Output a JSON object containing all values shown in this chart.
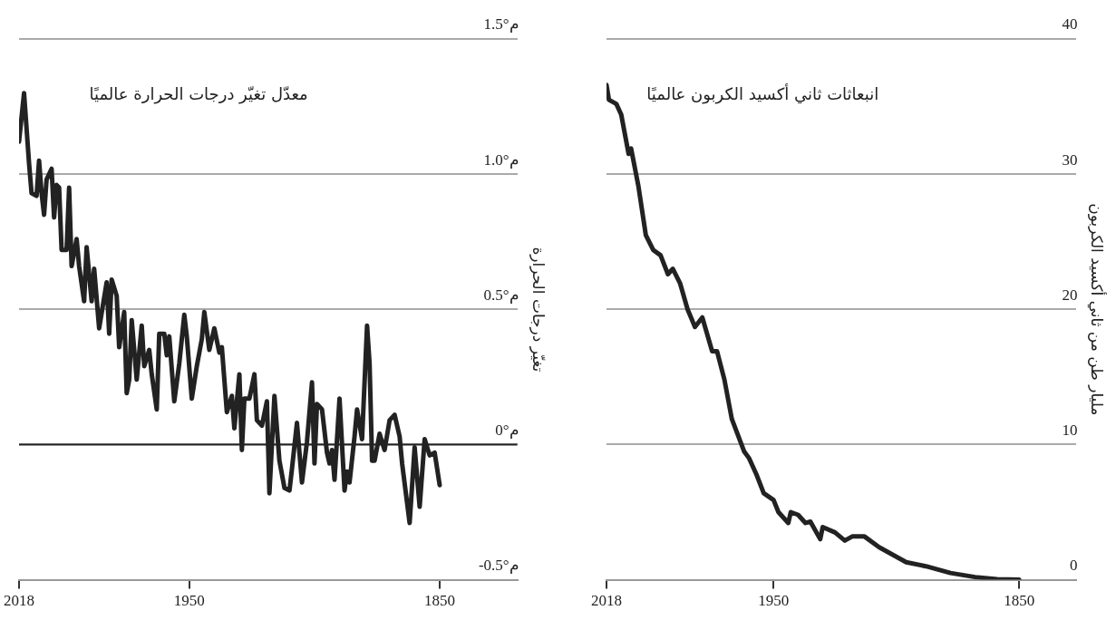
{
  "chart_data": [
    {
      "type": "line",
      "title": "معدّل تغيّر درجات الحرارة عالميًا",
      "ylabel": "تغيّر درجات الحرارة",
      "x": [
        2018,
        2016,
        2014,
        2013,
        2011,
        2010,
        2009,
        2008,
        2007,
        2005,
        2004,
        2003,
        2002,
        2001,
        1999,
        1998,
        1997,
        1995,
        1994,
        1992,
        1991,
        1989,
        1988,
        1986,
        1983,
        1982,
        1981,
        1979,
        1978,
        1976,
        1975,
        1974,
        1973,
        1971,
        1969,
        1968,
        1966,
        1965,
        1963,
        1962,
        1960,
        1959,
        1958,
        1956,
        1954,
        1952,
        1951,
        1949,
        1947,
        1945,
        1944,
        1942,
        1940,
        1938,
        1937,
        1935,
        1933,
        1932,
        1930,
        1929,
        1928,
        1926,
        1924,
        1923,
        1921,
        1919,
        1918,
        1916,
        1914,
        1912,
        1910,
        1909,
        1907,
        1905,
        1903,
        1901,
        1900,
        1899,
        1897,
        1895,
        1894,
        1893,
        1892,
        1890,
        1888,
        1887,
        1886,
        1884,
        1883,
        1881,
        1879,
        1878,
        1877,
        1876,
        1874,
        1872,
        1870,
        1868,
        1866,
        1865,
        1862,
        1860,
        1858,
        1856,
        1854,
        1852,
        1850
      ],
      "series": [
        {
          "color": "#222222",
          "values": [
            1.12,
            1.3,
            1.04,
            0.93,
            0.92,
            1.05,
            0.93,
            0.85,
            0.98,
            1.02,
            0.84,
            0.96,
            0.95,
            0.72,
            0.72,
            0.95,
            0.66,
            0.76,
            0.66,
            0.53,
            0.73,
            0.53,
            0.65,
            0.43,
            0.6,
            0.41,
            0.61,
            0.55,
            0.36,
            0.49,
            0.19,
            0.24,
            0.46,
            0.24,
            0.44,
            0.29,
            0.35,
            0.26,
            0.13,
            0.41,
            0.41,
            0.33,
            0.4,
            0.16,
            0.3,
            0.48,
            0.4,
            0.17,
            0.29,
            0.39,
            0.49,
            0.35,
            0.43,
            0.34,
            0.36,
            0.12,
            0.18,
            0.06,
            0.26,
            -0.02,
            0.17,
            0.17,
            0.26,
            0.09,
            0.07,
            0.16,
            -0.18,
            0.18,
            -0.06,
            -0.16,
            -0.17,
            -0.09,
            0.08,
            -0.14,
            0.01,
            0.23,
            -0.07,
            0.15,
            0.13,
            -0.03,
            -0.07,
            -0.02,
            -0.13,
            0.17,
            -0.17,
            -0.1,
            -0.14,
            0.03,
            0.13,
            0.02,
            0.44,
            0.3,
            -0.06,
            -0.06,
            0.04,
            -0.02,
            0.09,
            0.11,
            0.03,
            -0.07,
            -0.29,
            -0.01,
            -0.23,
            0.02,
            -0.04,
            -0.03,
            -0.15
          ]
        }
      ],
      "xlim": [
        2018,
        1819
      ],
      "xticks": [
        2018,
        1950,
        1850
      ],
      "ylim": [
        -0.5,
        1.5
      ],
      "yticks": [
        {
          "value": -0.5,
          "label": "-0.5°م"
        },
        {
          "value": 0,
          "label": "0°م"
        },
        {
          "value": 0.5,
          "label": "0.5°م"
        },
        {
          "value": 1,
          "label": "1.0°م"
        },
        {
          "value": 1.5,
          "label": "1.5°م"
        }
      ],
      "grid": "y",
      "ref_lines": [
        {
          "axis": "y",
          "value": 0,
          "color": "#222222"
        }
      ]
    },
    {
      "type": "line",
      "title": "انبعاثات ثاني أكسيد الكربون عالميًا",
      "ylabel": "مليار طن من ثاني أكسيد الكربون",
      "x": [
        2018,
        2017,
        2014,
        2012,
        2009,
        2008,
        2005,
        2002,
        1999,
        1996,
        1993,
        1991,
        1988,
        1985,
        1982,
        1979,
        1975,
        1973,
        1970,
        1967,
        1962,
        1960,
        1957,
        1954,
        1950,
        1948,
        1944,
        1943,
        1940,
        1937,
        1935,
        1931,
        1930,
        1925,
        1921,
        1918,
        1913,
        1907,
        1902,
        1896,
        1888,
        1878,
        1868,
        1859,
        1850
      ],
      "series": [
        {
          "color": "#222222",
          "values": [
            36.6,
            35.5,
            35.2,
            34.4,
            31.5,
            31.9,
            29.1,
            25.5,
            24.4,
            24.0,
            22.6,
            23.0,
            21.9,
            20.0,
            18.7,
            19.4,
            16.9,
            16.9,
            14.8,
            11.9,
            9.5,
            9.0,
            7.8,
            6.4,
            5.9,
            5.0,
            4.2,
            5.0,
            4.8,
            4.2,
            4.3,
            3.0,
            3.9,
            3.5,
            2.9,
            3.2,
            3.2,
            2.4,
            1.9,
            1.3,
            1.0,
            0.5,
            0.2,
            0.04,
            0
          ]
        }
      ],
      "xlim": [
        2018,
        1827
      ],
      "xticks": [
        2018,
        1950,
        1850
      ],
      "ylim": [
        0,
        40
      ],
      "yticks": [
        0,
        10,
        20,
        30,
        40
      ],
      "grid": "y"
    }
  ]
}
